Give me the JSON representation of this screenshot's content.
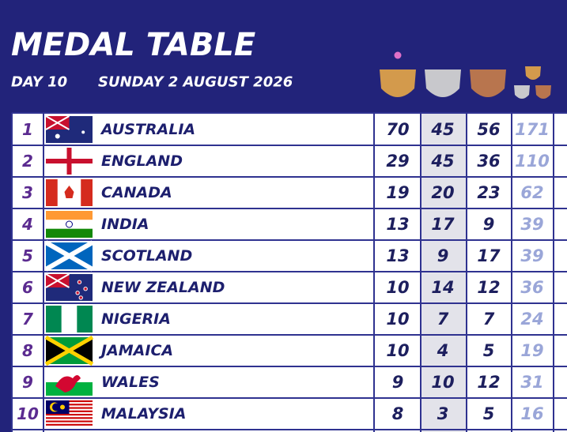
{
  "header": {
    "title": "MEDAL TABLE",
    "day": "DAY 10",
    "date": "SUNDAY 2 AUGUST 2026"
  },
  "table": {
    "rows": [
      [
        "1",
        "AUSTRALIA",
        70,
        45,
        56,
        171
      ],
      [
        "2",
        "ENGLAND",
        29,
        45,
        36,
        110
      ],
      [
        "3",
        "CANADA",
        19,
        20,
        23,
        62
      ],
      [
        "4",
        "INDIA",
        13,
        17,
        9,
        39
      ],
      [
        "5",
        "SCOTLAND",
        13,
        9,
        17,
        39
      ],
      [
        "6",
        "NEW ZEALAND",
        10,
        14,
        12,
        36
      ],
      [
        "7",
        "NIGERIA",
        10,
        7,
        7,
        24
      ],
      [
        "8",
        "JAMAICA",
        10,
        4,
        5,
        19
      ],
      [
        "9",
        "WALES",
        9,
        10,
        12,
        31
      ],
      [
        "10",
        "MALAYSIA",
        8,
        3,
        5,
        16
      ]
    ]
  }
}
